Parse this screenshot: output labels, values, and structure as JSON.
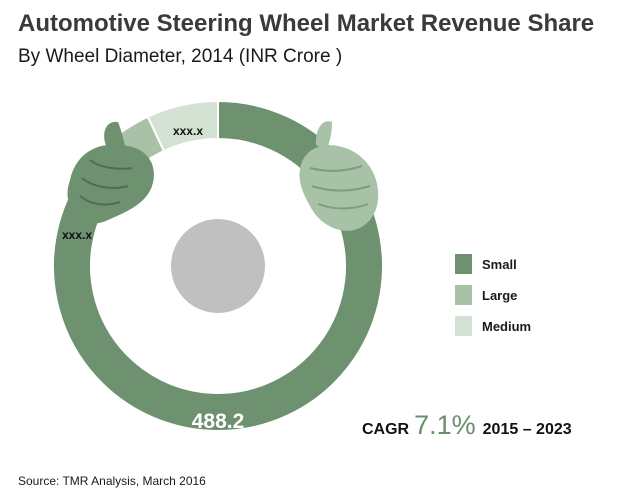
{
  "chart_data": {
    "type": "pie",
    "title": "Automotive Steering Wheel Market Revenue Share",
    "subtitle": "By Wheel Diameter, 2014 (INR Crore )",
    "categories": [
      "Small",
      "Large",
      "Medium"
    ],
    "series": [
      {
        "name": "Revenue share",
        "values": [
          488.2,
          null,
          null
        ],
        "share_percent": [
          86,
          7,
          7
        ],
        "data_labels": [
          "488.2",
          "xxx.x",
          "xxx.x"
        ]
      }
    ],
    "colors": [
      "#6e9170",
      "#a8c2a8",
      "#d4e2d4"
    ],
    "legend": {
      "position": "right",
      "items": [
        "Small",
        "Large",
        "Medium"
      ]
    },
    "annotations": {
      "cagr_label": "CAGR",
      "cagr_value": "7.1%",
      "cagr_period": "2015 – 2023"
    },
    "source": "Source: TMR Analysis, March 2016"
  }
}
